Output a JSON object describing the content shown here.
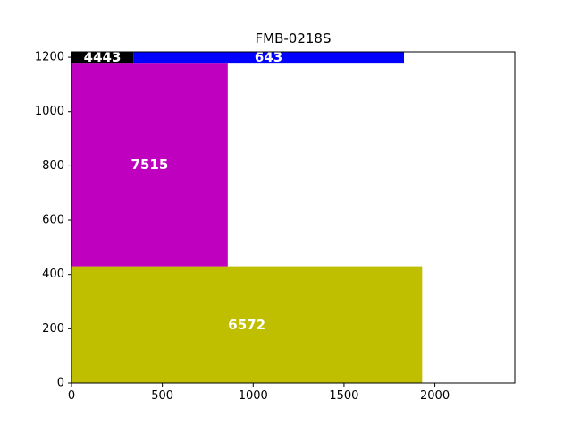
{
  "chart_data": {
    "type": "bar",
    "title": "FMB-0218S",
    "xlabel": "",
    "ylabel": "",
    "xlim": [
      0,
      2440
    ],
    "ylim": [
      0,
      1220
    ],
    "x_ticks": [
      0,
      500,
      1000,
      1500,
      2000
    ],
    "y_ticks": [
      0,
      200,
      400,
      600,
      800,
      1000,
      1200
    ],
    "grid": false,
    "legend": "none",
    "rects": [
      {
        "label": "6572",
        "x0": 0,
        "x1": 1930,
        "y0": 0,
        "y1": 430,
        "color": "#bfbf00"
      },
      {
        "label": "7515",
        "x0": 0,
        "x1": 860,
        "y0": 430,
        "y1": 1180,
        "color": "#bf00bf"
      },
      {
        "label": "4443",
        "x0": 0,
        "x1": 340,
        "y0": 1180,
        "y1": 1220,
        "color": "#000000"
      },
      {
        "label": "643",
        "x0": 340,
        "x1": 1830,
        "y0": 1180,
        "y1": 1220,
        "color": "#0000ff"
      }
    ]
  }
}
